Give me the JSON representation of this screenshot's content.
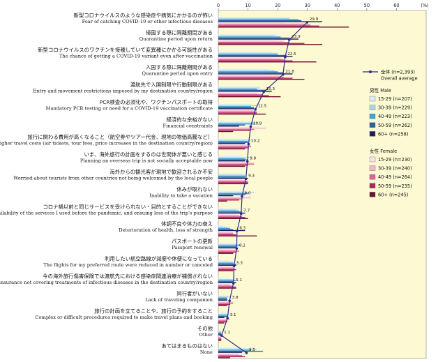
{
  "chart_data": {
    "type": "bar",
    "orientation": "horizontal",
    "unit": "(%)",
    "xlim": [
      0,
      70
    ],
    "xticks": [
      0,
      10,
      20,
      30,
      40,
      50,
      60
    ],
    "grid": false,
    "legend_position": "right",
    "categories": [
      {
        "jp": "新型コロナウイルスのような感染症や病気にかかるのが怖い",
        "en": "Fear of catching COVID-19 or other infectious diseases"
      },
      {
        "jp": "帰国する際に隔離期間がある",
        "en": "Quarantine period upon return"
      },
      {
        "jp": "新型コロナウイルスのワクチンを接種していて変異種にかかる可能性がある",
        "en": "The chance of getting a COVID-19 variant even after vaccination"
      },
      {
        "jp": "入国する際に隔離期間がある",
        "en": "Quarantine period upon entry"
      },
      {
        "jp": "渡航先で入国制限や行動制限がある",
        "en": "Entry and movement restrictions imposed by my destination country/region"
      },
      {
        "jp": "PCR検査の必須化や、ワクチンパスポートの取得",
        "en": "Mandatory PCR testing or need for a COVID-19 vaccination certificate"
      },
      {
        "jp": "経済的な余裕がない",
        "en": "Financial constraints"
      },
      {
        "jp": "旅行に関わる費用が高くなること（航空券やツアー代金、現地の物価高騰など）",
        "en": "Higher travel costs (air tickets, tour fees, price increases in the destination country/region)"
      },
      {
        "jp": "いま、海外旅行の計画をするのは世間体が悪いと感じる",
        "en": "Planning an overseas trip is not socially acceptable now"
      },
      {
        "jp": "海外からの観光客が現地で歓迎されるか不安",
        "en": "Worried about tourists from other countries not being welcomed by the local people"
      },
      {
        "jp": "休みが取れない",
        "en": "Inability to take a vacation"
      },
      {
        "jp": "コロナ禍以前と同じサービスを受けられない・目的とすることができない",
        "en": "Unavailability of the services I used before the pandemic, and ensuing loss of the trip's purpose"
      },
      {
        "jp": "体調不良や体力の衰え",
        "en": "Deterioration of health, loss of strength"
      },
      {
        "jp": "パスポートの更新",
        "en": "Passport renewal"
      },
      {
        "jp": "利用したい航空路線が減便や休便になっている",
        "en": "The flights for my preferred route were reduced in number or canceled"
      },
      {
        "jp": "今の海外旅行傷害保険では渡航先における感染症関連治療が補償されない",
        "en": "My travel insurance not covering treatments of infectious diseases in the destination country/region"
      },
      {
        "jp": "同行者がいない",
        "en": "Lack of traveling companion"
      },
      {
        "jp": "旅行の計画を立てることや、旅行の予約をすること",
        "en": "Complex or difficult procedures required to make travel plans and booking"
      },
      {
        "jp": "その他",
        "en": "Other"
      },
      {
        "jp": "あてはまるものはない",
        "en": "None"
      }
    ],
    "overall": {
      "name_jp": "全体 (n=2,393)",
      "name_en": "Overall average",
      "values": [
        29.9,
        23.9,
        22.5,
        21.8,
        15.3,
        12.5,
        10.9,
        10.2,
        9.8,
        9.3,
        8.0,
        7.7,
        6.3,
        6.2,
        5.3,
        5.1,
        3.8,
        3.1,
        1.1,
        9.5
      ]
    },
    "series": [
      {
        "name": "15-29 (n=207)",
        "group": "male",
        "color": "#dbeef8",
        "values": [
          26,
          20,
          18,
          17,
          14,
          11,
          12,
          10,
          8,
          8,
          9,
          7,
          2,
          7,
          4,
          4,
          3,
          3,
          1,
          9
        ]
      },
      {
        "name": "30-39 (n=229)",
        "group": "male",
        "color": "#a9d6ee",
        "values": [
          24,
          19,
          20,
          19,
          14,
          13,
          14,
          11,
          11,
          9,
          12,
          6,
          3,
          8,
          5,
          5,
          4,
          4,
          1,
          13
        ]
      },
      {
        "name": "40-49 (n=223)",
        "group": "male",
        "color": "#3fa3d8",
        "values": [
          27,
          21,
          20,
          20,
          13,
          11,
          12,
          10,
          9,
          9,
          10,
          7,
          4,
          7,
          5,
          6,
          3,
          3,
          1,
          11
        ]
      },
      {
        "name": "50-59 (n=262)",
        "group": "male",
        "color": "#2a5fa8",
        "values": [
          28,
          24,
          23,
          22,
          16,
          12,
          9,
          10,
          10,
          9,
          9,
          8,
          5,
          6,
          6,
          5,
          3,
          3,
          1,
          15
        ]
      },
      {
        "name": "60+ (n=258)",
        "group": "male",
        "color": "#1b1f5c",
        "values": [
          35,
          27,
          25,
          25,
          18,
          12,
          7,
          9,
          9,
          10,
          5,
          9,
          9,
          6,
          6,
          6,
          3,
          2,
          1,
          8
        ]
      },
      {
        "name": "15-29 (n=230)",
        "group": "female",
        "color": "#fbe3ee",
        "values": [
          22,
          19,
          18,
          17,
          13,
          11,
          14,
          10,
          9,
          8,
          11,
          6,
          3,
          7,
          4,
          4,
          6,
          4,
          1,
          10
        ]
      },
      {
        "name": "30-39 (n=240)",
        "group": "female",
        "color": "#f4b6cf",
        "values": [
          29,
          22,
          21,
          21,
          13,
          12,
          16,
          11,
          12,
          9,
          11,
          7,
          5,
          6,
          5,
          4,
          5,
          4,
          1,
          7
        ]
      },
      {
        "name": "40-49 (n=264)",
        "group": "female",
        "color": "#e0609a",
        "values": [
          31,
          24,
          22,
          22,
          15,
          13,
          12,
          11,
          12,
          10,
          8,
          8,
          5,
          7,
          5,
          5,
          5,
          3,
          1,
          8
        ]
      },
      {
        "name": "50-59 (n=235)",
        "group": "female",
        "color": "#b0235f",
        "values": [
          34,
          29,
          25,
          25,
          17,
          13,
          11,
          10,
          10,
          10,
          7,
          9,
          6,
          6,
          6,
          6,
          4,
          3,
          1,
          9
        ]
      },
      {
        "name": "60+ (n=245)",
        "group": "female",
        "color": "#6e0f35",
        "values": [
          44,
          35,
          33,
          29,
          21,
          16,
          5,
          9,
          9,
          10,
          3,
          10,
          13,
          5,
          5,
          6,
          3,
          2,
          1,
          4
        ]
      }
    ],
    "legend": {
      "overall_jp": "全体 (n=2,393)",
      "overall_en": "Overall average",
      "male_title": "男性  Male",
      "female_title": "女性  Female"
    },
    "colors": {
      "plot_background": "#fdf9d2",
      "overall_line": "#2a2e8c"
    }
  }
}
